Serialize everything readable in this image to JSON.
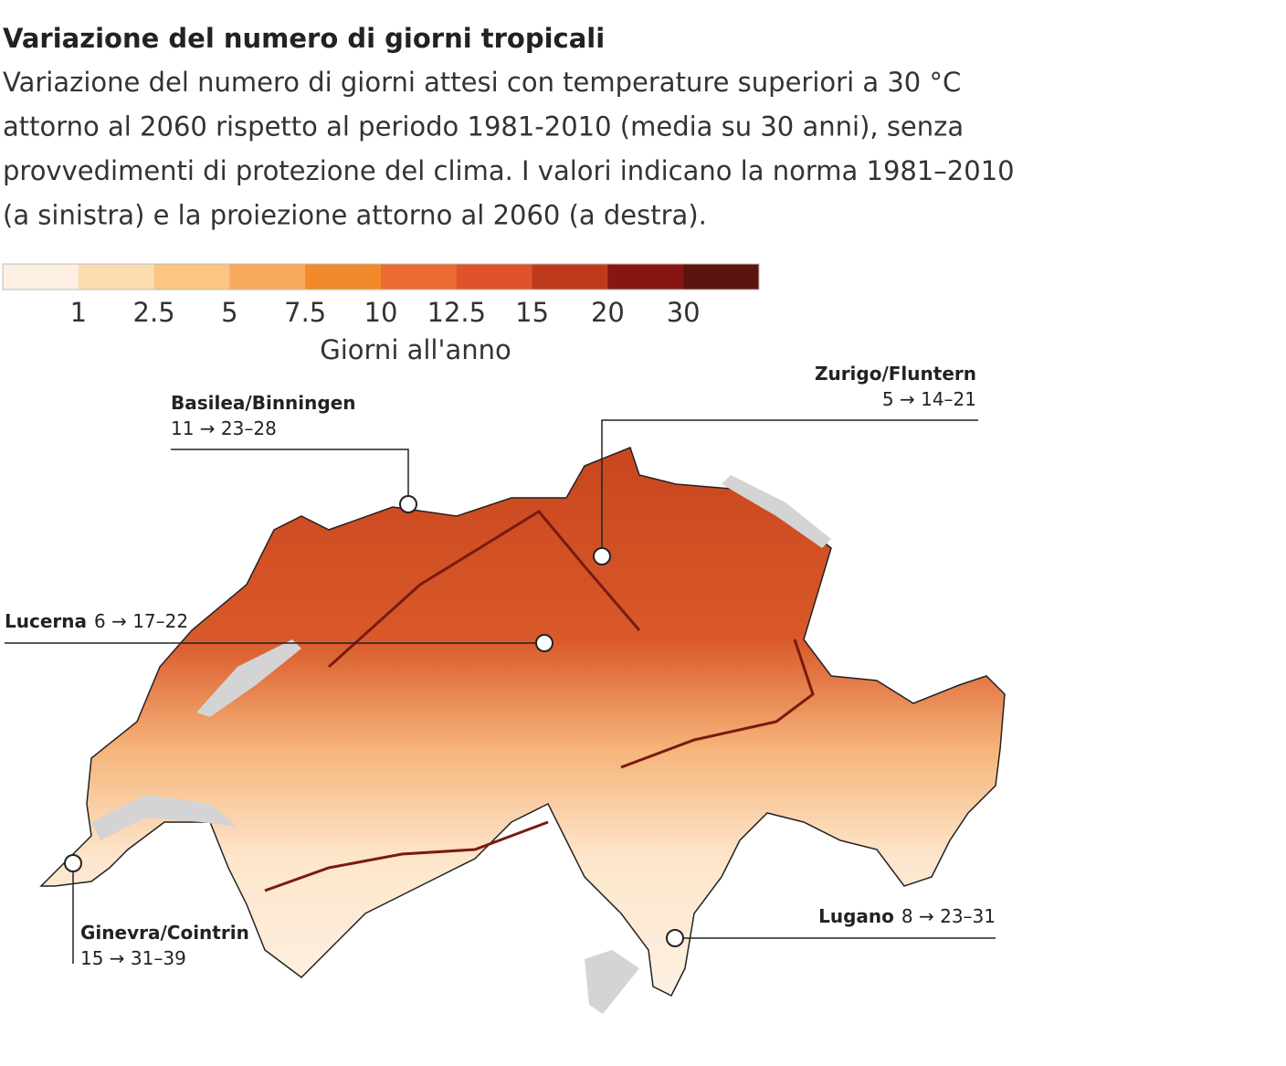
{
  "header": {
    "title": "Variazione del numero di giorni tropicali",
    "subtitle_lines": [
      "Variazione del numero di giorni attesi con temperature superiori a 30 °C",
      "attorno al 2060 rispetto al periodo 1981-2010 (media su 30 anni), senza",
      "provvedimenti di protezione del clima. I valori indicano la norma 1981–2010",
      "(a sinistra) e la proiezione attorno al 2060 (a destra)."
    ]
  },
  "legend": {
    "colors": [
      "#fdf0e2",
      "#fddcaf",
      "#fbc582",
      "#f8a95c",
      "#f28a2b",
      "#ec6b33",
      "#e0522b",
      "#bd3b1c",
      "#871612",
      "#5b140e"
    ],
    "ticks": [
      1,
      2.5,
      5,
      7.5,
      10,
      12.5,
      15,
      20,
      30
    ],
    "label": "Giorni all'anno"
  },
  "stations": [
    {
      "name": "Basilea/Binningen",
      "values": "11 → 23–28"
    },
    {
      "name": "Zurigo/Fluntern",
      "values": "5 → 14–21"
    },
    {
      "name": "Lucerna",
      "values": "6 → 17–22"
    },
    {
      "name": "Ginevra/Cointrin",
      "values": "15 → 31–39"
    },
    {
      "name": "Lugano",
      "values": "8 → 23–31"
    }
  ]
}
